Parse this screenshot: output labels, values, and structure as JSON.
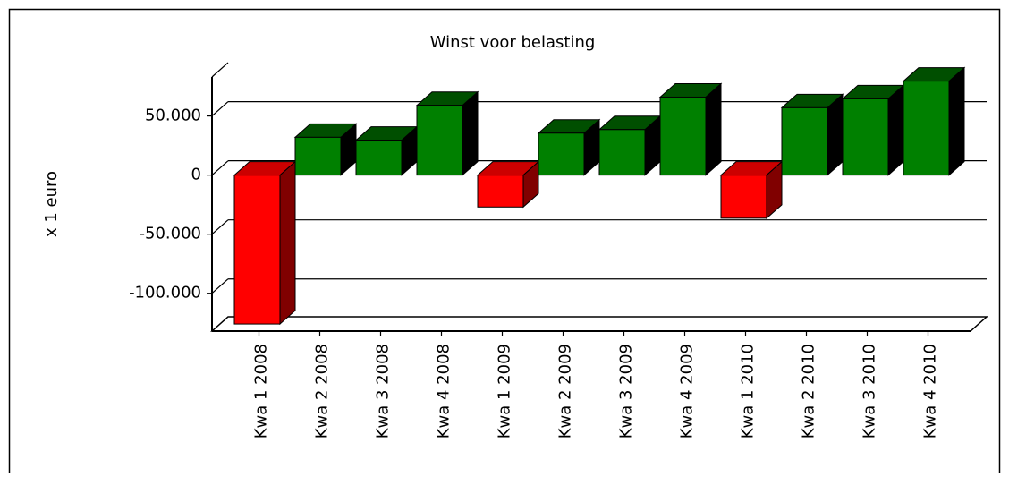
{
  "chart_data": {
    "type": "bar3d",
    "title": "Winst voor belasting",
    "y_label": "x 1 euro",
    "categories": [
      "Kwa 1 2008",
      "Kwa 2 2008",
      "Kwa 3 2008",
      "Kwa 4 2008",
      "Kwa 1 2009",
      "Kwa 2 2009",
      "Kwa 3 2009",
      "Kwa 4 2009",
      "Kwa 1 2010",
      "Kwa 2 2010",
      "Kwa 3 2010",
      "Kwa 4 2010"
    ],
    "values": [
      -126000,
      32000,
      29500,
      59000,
      -27000,
      35500,
      38500,
      66000,
      -36500,
      57000,
      64500,
      79500
    ],
    "color": "#008000",
    "negative_color": "#ff0000",
    "ylim": [
      -132000,
      83000
    ],
    "yticks": [
      {
        "value": -100000,
        "label": "-100.000"
      },
      {
        "value": -50000,
        "label": "-50.000"
      },
      0,
      {
        "value": 50000,
        "label": "50.000"
      }
    ],
    "grid": true
  }
}
